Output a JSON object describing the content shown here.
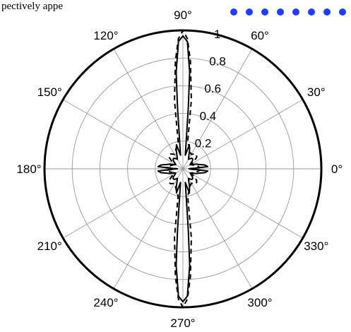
{
  "caption_fragment": "pectively appe",
  "colors": {
    "frame": "#000000",
    "grid": "#9a9a9a",
    "solid_series": "#000000",
    "dashed_series": "#000000",
    "dots": "#1f3cff"
  },
  "chart_data": {
    "type": "polar-line",
    "title": "",
    "angular_unit": "degrees",
    "angular_ticks": [
      "0°",
      "30°",
      "60°",
      "90°",
      "120°",
      "150°",
      "180°",
      "210°",
      "240°",
      "270°",
      "300°",
      "330°"
    ],
    "angular_tick_values": [
      0,
      30,
      60,
      90,
      120,
      150,
      180,
      210,
      240,
      270,
      300,
      330
    ],
    "radial_ticks": [
      "0.2",
      "0.4",
      "0.6",
      "0.8",
      "1"
    ],
    "radial_tick_values": [
      0.2,
      0.4,
      0.6,
      0.8,
      1.0
    ],
    "rlim": [
      0,
      1
    ],
    "grid": true,
    "series": [
      {
        "style": "solid",
        "theta": [
          0,
          5,
          10,
          15,
          20,
          25,
          30,
          35,
          40,
          45,
          50,
          55,
          60,
          65,
          70,
          75,
          80,
          85,
          86,
          88,
          90
        ],
        "r": [
          0.05,
          0.18,
          0.16,
          0.12,
          0.1,
          0.07,
          0.06,
          0.07,
          0.09,
          0.1,
          0.1,
          0.09,
          0.08,
          0.1,
          0.14,
          0.18,
          0.1,
          0.45,
          0.7,
          0.92,
          0.96
        ]
      },
      {
        "style": "dashed",
        "theta": [
          0,
          5,
          10,
          15,
          20,
          25,
          30,
          35,
          40,
          45,
          50,
          55,
          60,
          65,
          70,
          75,
          80,
          83,
          86,
          88,
          90
        ],
        "r": [
          0.04,
          0.12,
          0.11,
          0.09,
          0.08,
          0.07,
          0.08,
          0.1,
          0.13,
          0.14,
          0.14,
          0.13,
          0.12,
          0.13,
          0.15,
          0.17,
          0.2,
          0.5,
          0.78,
          0.94,
          1.0
        ]
      }
    ],
    "symmetry": "mirrored about both the 0°-180° and 90°-270° axes"
  }
}
